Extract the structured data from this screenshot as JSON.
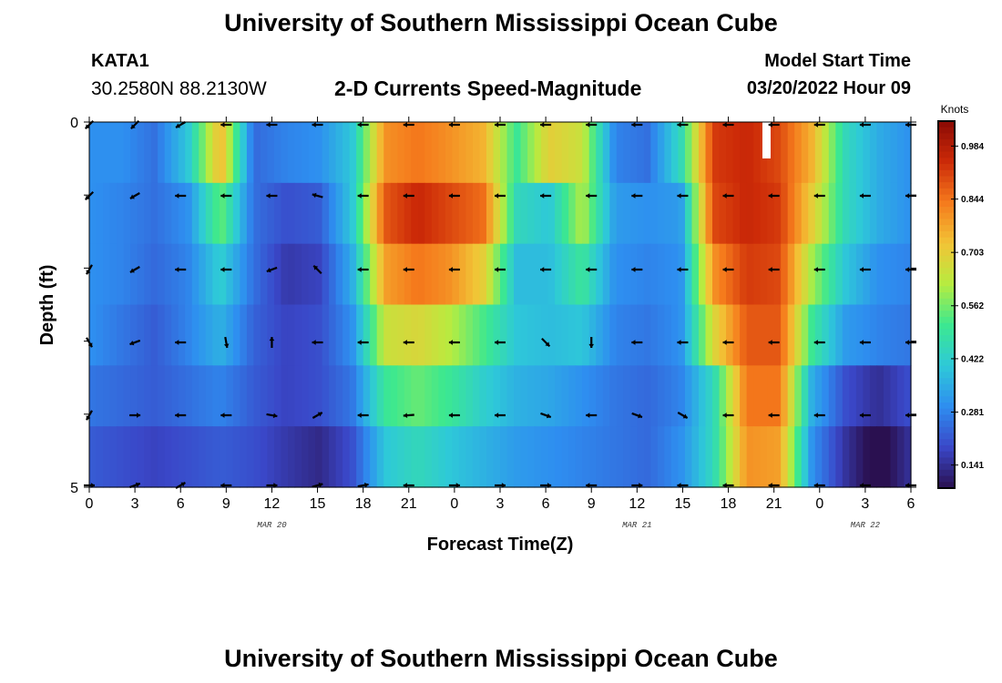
{
  "header": {
    "title": "University of Southern Mississippi Ocean Cube",
    "station": "KATA1",
    "coordinates": "30.2580N  88.2130W",
    "subtitle": "2-D Currents Speed-Magnitude",
    "model_start_label": "Model Start Time",
    "model_start_value": "03/20/2022 Hour 09"
  },
  "footer": {
    "title": "University of Southern Mississippi Ocean Cube"
  },
  "chart_data": {
    "type": "heatmap",
    "title": "2-D Currents Speed-Magnitude",
    "xlabel": "Forecast Time(Z)",
    "ylabel": "Depth (ft)",
    "x_ticks": [
      "0",
      "3",
      "6",
      "9",
      "12",
      "15",
      "18",
      "21",
      "0",
      "3",
      "6",
      "9",
      "12",
      "15",
      "18",
      "21",
      "0",
      "3",
      "6"
    ],
    "date_labels": [
      {
        "label": "MAR 20",
        "at_tick": 4
      },
      {
        "label": "MAR 21",
        "at_tick": 12
      },
      {
        "label": "MAR 22",
        "at_tick": 17
      }
    ],
    "y_ticks": [
      "0",
      "5"
    ],
    "ylim": [
      0,
      5
    ],
    "colorbar": {
      "title": "Knots",
      "min": 0.08,
      "max": 1.05,
      "ticks": [
        "0.984",
        "0.844",
        "0.703",
        "0.562",
        "0.422",
        "0.281",
        "0.141"
      ],
      "colors": [
        "#2a1050",
        "#3a47c8",
        "#2e8ef0",
        "#2ec9d8",
        "#3ce890",
        "#b6ec40",
        "#f2c436",
        "#f57a1c",
        "#cc2a08",
        "#8a0a04"
      ]
    },
    "x_hours": [
      0,
      3,
      6,
      9,
      12,
      15,
      18,
      21,
      24,
      27,
      30,
      33,
      36,
      39,
      42,
      45,
      48,
      51,
      54
    ],
    "depth_levels": [
      0,
      1,
      2,
      3,
      4,
      5
    ],
    "speed_knots": [
      [
        0.3,
        0.3,
        0.25,
        0.4,
        0.75,
        0.24,
        0.28,
        0.3,
        0.4,
        0.8,
        0.84,
        0.8,
        0.75,
        0.5,
        0.7,
        0.65,
        0.28,
        0.25,
        0.45,
        0.92,
        0.95,
        0.9,
        0.75,
        0.45,
        0.35,
        0.3
      ],
      [
        0.3,
        0.28,
        0.25,
        0.3,
        0.55,
        0.25,
        0.2,
        0.22,
        0.4,
        0.88,
        0.95,
        0.9,
        0.85,
        0.45,
        0.4,
        0.62,
        0.32,
        0.3,
        0.32,
        0.9,
        0.95,
        0.92,
        0.7,
        0.45,
        0.35,
        0.3
      ],
      [
        0.3,
        0.28,
        0.24,
        0.28,
        0.42,
        0.25,
        0.16,
        0.18,
        0.35,
        0.78,
        0.84,
        0.8,
        0.7,
        0.38,
        0.38,
        0.5,
        0.3,
        0.28,
        0.3,
        0.8,
        0.92,
        0.9,
        0.6,
        0.4,
        0.3,
        0.28
      ],
      [
        0.3,
        0.26,
        0.22,
        0.28,
        0.36,
        0.23,
        0.18,
        0.2,
        0.3,
        0.65,
        0.68,
        0.62,
        0.52,
        0.4,
        0.38,
        0.4,
        0.28,
        0.26,
        0.3,
        0.68,
        0.88,
        0.88,
        0.5,
        0.32,
        0.28,
        0.26
      ],
      [
        0.26,
        0.24,
        0.22,
        0.25,
        0.28,
        0.22,
        0.18,
        0.2,
        0.26,
        0.5,
        0.55,
        0.5,
        0.42,
        0.36,
        0.34,
        0.3,
        0.26,
        0.24,
        0.28,
        0.45,
        0.84,
        0.84,
        0.35,
        0.2,
        0.14,
        0.2
      ],
      [
        0.22,
        0.2,
        0.18,
        0.2,
        0.22,
        0.2,
        0.16,
        0.13,
        0.2,
        0.4,
        0.45,
        0.4,
        0.36,
        0.32,
        0.3,
        0.28,
        0.26,
        0.24,
        0.3,
        0.45,
        0.8,
        0.78,
        0.3,
        0.15,
        0.05,
        0.15
      ]
    ],
    "vector_rows": [
      {
        "depth": 0,
        "dirs": [
          225,
          225,
          210,
          180,
          180,
          180,
          180,
          180,
          180,
          180,
          180,
          180,
          180,
          180,
          180,
          180,
          180,
          180,
          180
        ]
      },
      {
        "depth": 1,
        "dirs": [
          225,
          210,
          180,
          180,
          180,
          165,
          180,
          180,
          180,
          180,
          180,
          180,
          180,
          180,
          180,
          180,
          180,
          180,
          180
        ]
      },
      {
        "depth": 2,
        "dirs": [
          240,
          210,
          180,
          180,
          200,
          135,
          180,
          180,
          180,
          180,
          180,
          180,
          180,
          180,
          180,
          180,
          180,
          180,
          180
        ]
      },
      {
        "depth": 3,
        "dirs": [
          300,
          200,
          180,
          280,
          90,
          180,
          180,
          180,
          180,
          180,
          315,
          270,
          180,
          180,
          180,
          180,
          180,
          180,
          180
        ]
      },
      {
        "depth": 4,
        "dirs": [
          240,
          0,
          180,
          180,
          350,
          30,
          180,
          185,
          180,
          180,
          340,
          180,
          340,
          330,
          180,
          180,
          180,
          180,
          180
        ]
      },
      {
        "depth": 5,
        "dirs": [
          0,
          20,
          30,
          180,
          0,
          15,
          10,
          180,
          0,
          0,
          0,
          180,
          0,
          180,
          180,
          180,
          180,
          180,
          180
        ]
      }
    ]
  }
}
